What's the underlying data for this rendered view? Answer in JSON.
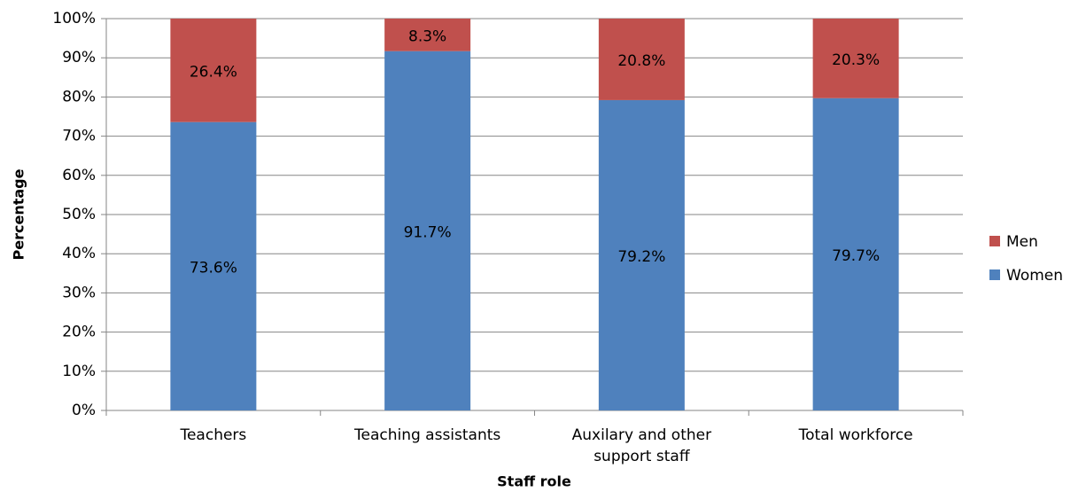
{
  "chart_data": {
    "type": "stacked_bar",
    "categories": [
      "Teachers",
      "Teaching assistants",
      "Auxilary and other support staff",
      "Total workforce"
    ],
    "series": [
      {
        "name": "Women",
        "color": "#4f81bd",
        "values": [
          73.6,
          91.7,
          79.2,
          79.7
        ],
        "value_labels": [
          "73.6%",
          "91.7%",
          "79.2%",
          "79.7%"
        ]
      },
      {
        "name": "Men",
        "color": "#c0504d",
        "values": [
          26.4,
          8.3,
          20.8,
          20.3
        ],
        "value_labels": [
          "26.4%",
          "8.3%",
          "20.8%",
          "20.3%"
        ]
      }
    ],
    "x_label": "Staff role",
    "y_label": "Percentage",
    "ylim": [
      0,
      100
    ],
    "yticks": [
      {
        "value": 0,
        "label": "0%"
      },
      {
        "value": 10,
        "label": "10%"
      },
      {
        "value": 20,
        "label": "20%"
      },
      {
        "value": 30,
        "label": "30%"
      },
      {
        "value": 40,
        "label": "40%"
      },
      {
        "value": 50,
        "label": "50%"
      },
      {
        "value": 60,
        "label": "60%"
      },
      {
        "value": 70,
        "label": "70%"
      },
      {
        "value": 80,
        "label": "80%"
      },
      {
        "value": 90,
        "label": "90%"
      },
      {
        "value": 100,
        "label": "100%"
      }
    ],
    "grid": true,
    "legend": "right"
  }
}
